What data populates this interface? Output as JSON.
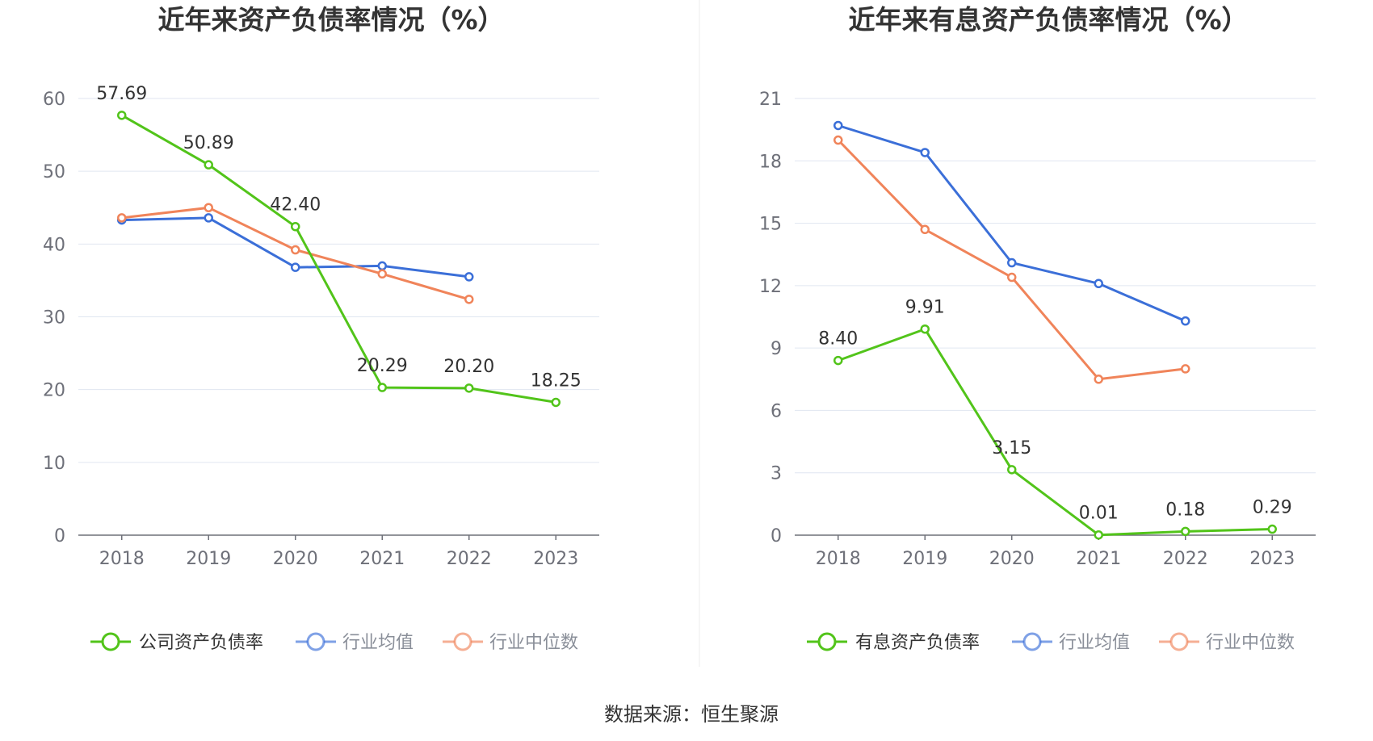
{
  "source": "数据来源：恒生聚源",
  "colors": {
    "company": "#52c41a",
    "industry_avg": "#3b6fd8",
    "industry_median": "#f0845a",
    "grid": "#e0e6f1",
    "axis": "#6e7079"
  },
  "chart_data": [
    {
      "type": "line",
      "title": "近年来资产负债率情况（%）",
      "categories": [
        "2018",
        "2019",
        "2020",
        "2021",
        "2022",
        "2023"
      ],
      "ylim": [
        0,
        60
      ],
      "yticks": [
        0,
        10,
        20,
        30,
        40,
        50,
        60
      ],
      "series": [
        {
          "name": "公司资产负债率",
          "key": "company",
          "values": [
            57.69,
            50.89,
            42.4,
            20.29,
            20.2,
            18.25
          ],
          "labels": [
            "57.69",
            "50.89",
            "42.40",
            "20.29",
            "20.20",
            "18.25"
          ]
        },
        {
          "name": "行业均值",
          "key": "industry_avg",
          "values": [
            43.3,
            43.6,
            36.8,
            37.0,
            35.5,
            null
          ]
        },
        {
          "name": "行业中位数",
          "key": "industry_median",
          "values": [
            43.6,
            45.0,
            39.2,
            35.9,
            32.4,
            null
          ]
        }
      ]
    },
    {
      "type": "line",
      "title": "近年来有息资产负债率情况（%）",
      "categories": [
        "2018",
        "2019",
        "2020",
        "2021",
        "2022",
        "2023"
      ],
      "ylim": [
        0,
        21
      ],
      "yticks": [
        0,
        3,
        6,
        9,
        12,
        15,
        18,
        21
      ],
      "series": [
        {
          "name": "有息资产负债率",
          "key": "company",
          "values": [
            8.4,
            9.91,
            3.15,
            0.01,
            0.18,
            0.29
          ],
          "labels": [
            "8.40",
            "9.91",
            "3.15",
            "0.01",
            "0.18",
            "0.29"
          ]
        },
        {
          "name": "行业均值",
          "key": "industry_avg",
          "values": [
            19.7,
            18.4,
            13.1,
            12.1,
            10.3,
            null
          ]
        },
        {
          "name": "行业中位数",
          "key": "industry_median",
          "values": [
            19.0,
            14.7,
            12.4,
            7.5,
            8.0,
            null
          ]
        }
      ]
    }
  ]
}
